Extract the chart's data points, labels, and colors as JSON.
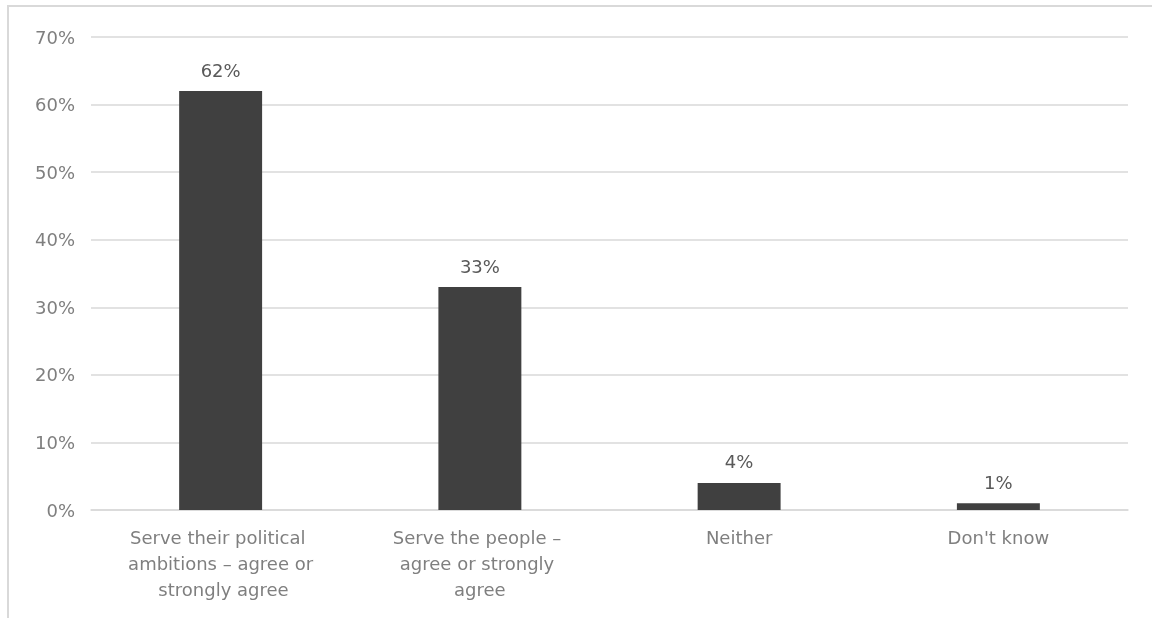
{
  "chart_data": {
    "type": "bar",
    "categories": [
      "Serve their political ambitions – agree or strongly agree",
      "Serve the people – agree or strongly agree",
      "Neither",
      "Don't know"
    ],
    "values": [
      62,
      33,
      4,
      1
    ],
    "color": "#404040",
    "value_labels": [
      "62%",
      "33%",
      "4%",
      "1%"
    ],
    "ylim": [
      0,
      70
    ],
    "yticks": [
      {
        "value": 0,
        "label": "0%"
      },
      {
        "value": 10,
        "label": "10%"
      },
      {
        "value": 20,
        "label": "20%"
      },
      {
        "value": 30,
        "label": "30%"
      },
      {
        "value": 40,
        "label": "40%"
      },
      {
        "value": 50,
        "label": "50%"
      },
      {
        "value": 60,
        "label": "60%"
      },
      {
        "value": 70,
        "label": "70%"
      }
    ],
    "grid": "y"
  }
}
